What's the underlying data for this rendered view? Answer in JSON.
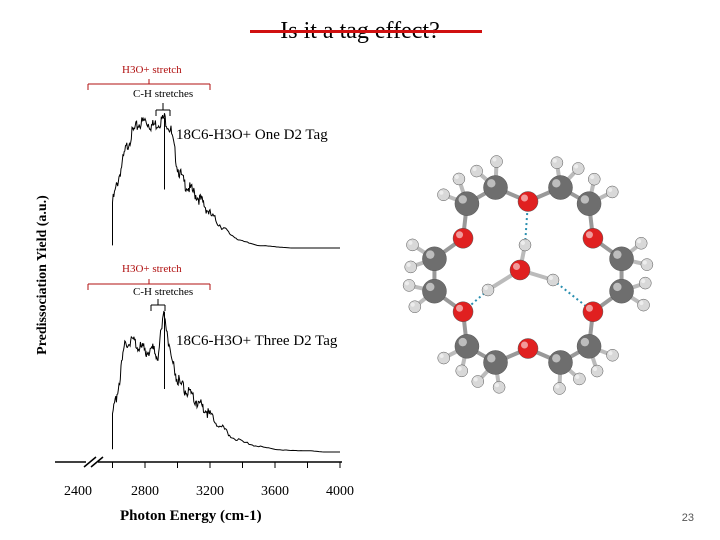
{
  "slide": {
    "title": "Is it a tag effect?",
    "page_number": "23"
  },
  "annotations": {
    "top": {
      "h3o_stretch": "H3O+ stretch",
      "ch_stretches": "C-H stretches",
      "trace_label": "18C6-H3O+ One D2 Tag"
    },
    "bottom": {
      "h3o_stretch": "H3O+ stretch",
      "ch_stretches": "C-H stretches",
      "trace_label": "18C6-H3O+ Three D2 Tag"
    }
  },
  "molecule": {
    "description_colors": {
      "oxygen": "#e02020",
      "carbon": "#6e6e6e",
      "hydrogen": "#d8d8d8",
      "hbond": "#2a8fb0"
    }
  },
  "chart_data": {
    "type": "line",
    "xlabel": "Photon Energy (cm-1)",
    "ylabel": "Predissociation Yield (a.u.)",
    "xticks": [
      2400,
      2800,
      3200,
      3600,
      4000
    ],
    "xlim": [
      2400,
      4000
    ],
    "axis_break": true,
    "series": [
      {
        "name": "18C6-H3O+ One D2 Tag",
        "x": [
          2600,
          2640,
          2680,
          2720,
          2760,
          2800,
          2840,
          2880,
          2920,
          2960,
          3000,
          3040,
          3080,
          3120,
          3160,
          3200,
          3260,
          3320,
          3400,
          3500,
          3600,
          3700,
          3800,
          3900,
          4000
        ],
        "values": [
          0.35,
          0.55,
          0.75,
          0.88,
          0.95,
          0.98,
          0.94,
          0.96,
          1.0,
          0.9,
          0.62,
          0.5,
          0.45,
          0.4,
          0.34,
          0.26,
          0.18,
          0.11,
          0.05,
          0.02,
          0.01,
          0.0,
          0.0,
          0.0,
          0.0
        ]
      },
      {
        "name": "18C6-H3O+ Three D2 Tag",
        "x": [
          2600,
          2640,
          2680,
          2720,
          2760,
          2800,
          2840,
          2880,
          2920,
          2960,
          3000,
          3040,
          3080,
          3120,
          3160,
          3200,
          3260,
          3320,
          3400,
          3500,
          3600,
          3700,
          3800,
          3900,
          4000
        ],
        "values": [
          0.25,
          0.5,
          0.78,
          0.8,
          0.76,
          0.72,
          0.74,
          0.7,
          1.0,
          0.68,
          0.52,
          0.45,
          0.4,
          0.36,
          0.32,
          0.26,
          0.19,
          0.12,
          0.07,
          0.04,
          0.02,
          0.01,
          0.01,
          0.0,
          0.0
        ]
      }
    ]
  }
}
